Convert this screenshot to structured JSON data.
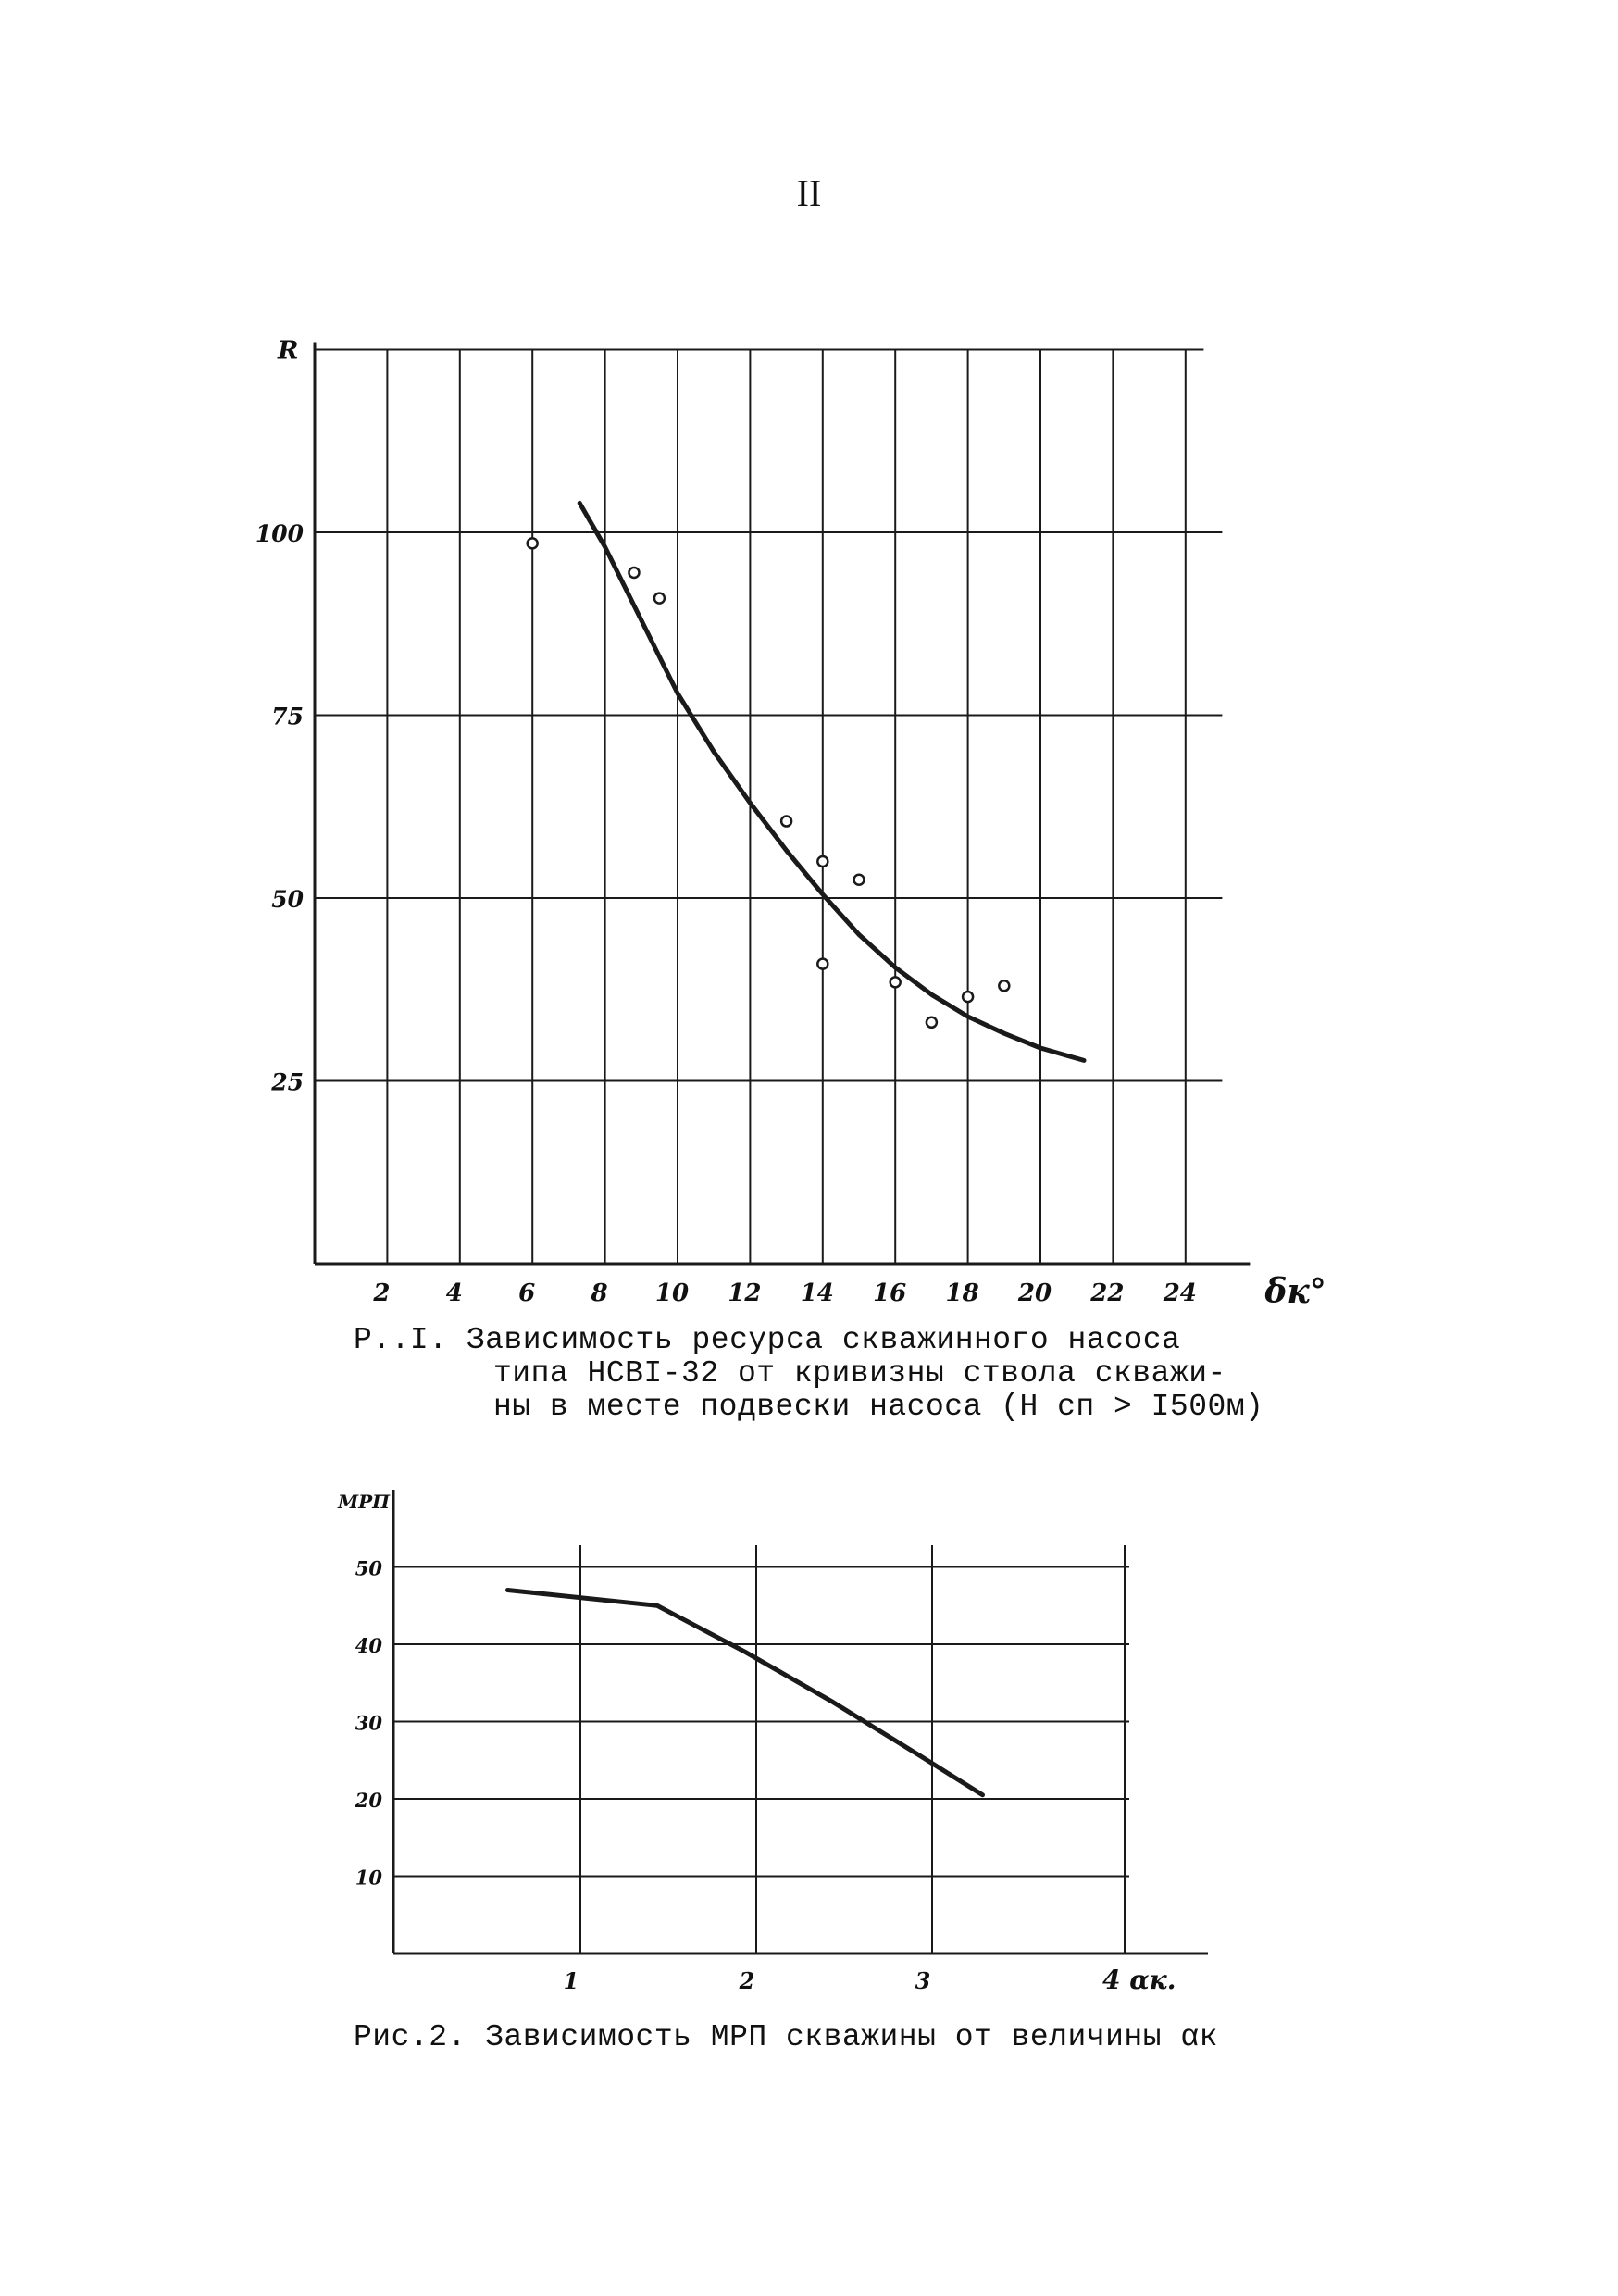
{
  "page_number": "II",
  "chart_data": [
    {
      "type": "scatter",
      "ylabel": "R",
      "xlabel": "δк°",
      "x_ticks": [
        2,
        4,
        6,
        8,
        10,
        12,
        14,
        16,
        18,
        20,
        22,
        24
      ],
      "y_ticks": [
        25,
        50,
        75,
        100
      ],
      "xlim": [
        0,
        24.5
      ],
      "ylim": [
        0,
        125
      ],
      "grid": true,
      "points": [
        {
          "x": 6.0,
          "y": 98.5
        },
        {
          "x": 8.8,
          "y": 94.5
        },
        {
          "x": 9.5,
          "y": 91.0
        },
        {
          "x": 13.0,
          "y": 60.5
        },
        {
          "x": 14.0,
          "y": 55.0
        },
        {
          "x": 15.0,
          "y": 52.5
        },
        {
          "x": 14.0,
          "y": 41.0
        },
        {
          "x": 16.0,
          "y": 38.5
        },
        {
          "x": 17.0,
          "y": 33.0
        },
        {
          "x": 18.0,
          "y": 36.5
        },
        {
          "x": 19.0,
          "y": 38.0
        }
      ],
      "trend": {
        "x": [
          7.3,
          8.0,
          9.0,
          10.0,
          11.0,
          12.0,
          13.0,
          14.0,
          15.0,
          16.0,
          17.0,
          18.0,
          19.0,
          20.0,
          21.2
        ],
        "y": [
          104,
          98,
          88,
          78,
          70,
          63,
          56.5,
          50.5,
          45,
          40.5,
          36.8,
          33.8,
          31.5,
          29.5,
          27.8
        ]
      },
      "caption": [
        "Р..I. Зависимость ресурса скважинного насоса",
        "типа НСВI-32 от кривизны ствола скважи-",
        "ны в месте подвески насоса (Н сп > I500м)"
      ]
    },
    {
      "type": "line",
      "ylabel": "МРП",
      "xlabel": "4 αк.",
      "x_ticks": [
        "1",
        "2",
        "3"
      ],
      "x_tick_values": [
        1,
        2,
        3
      ],
      "y_ticks": [
        10,
        20,
        30,
        40,
        50
      ],
      "xlim": [
        0,
        4
      ],
      "ylim": [
        0,
        60
      ],
      "grid": true,
      "series": [
        {
          "x": [
            0.65,
            1.5,
            2.0,
            2.5,
            3.0,
            3.35
          ],
          "y": [
            47,
            45,
            39,
            32.5,
            25.5,
            20.5
          ]
        }
      ],
      "caption": "Рис.2. Зависимость МРП скважины от величины αк"
    }
  ]
}
